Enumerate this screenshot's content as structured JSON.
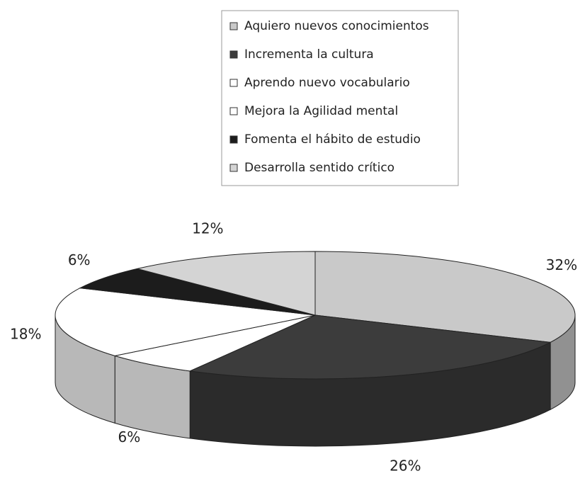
{
  "chart_data": {
    "type": "pie3d",
    "categories": [
      "Aquiero nuevos conocimientos",
      "Incrementa la cultura",
      "Aprendo nuevo vocabulario",
      "Mejora la Agilidad mental",
      "Fomenta el hábito de estudio",
      "Desarrolla sentido crítico"
    ],
    "values": [
      32,
      26,
      6,
      18,
      6,
      12
    ],
    "value_labels": [
      "32%",
      "26%",
      "6%",
      "18%",
      "6%",
      "12%"
    ],
    "colors": [
      "#c9c9c9",
      "#3c3c3c",
      "#ffffff",
      "#ffffff",
      "#1c1c1c",
      "#d4d4d4"
    ],
    "legend": "top"
  }
}
